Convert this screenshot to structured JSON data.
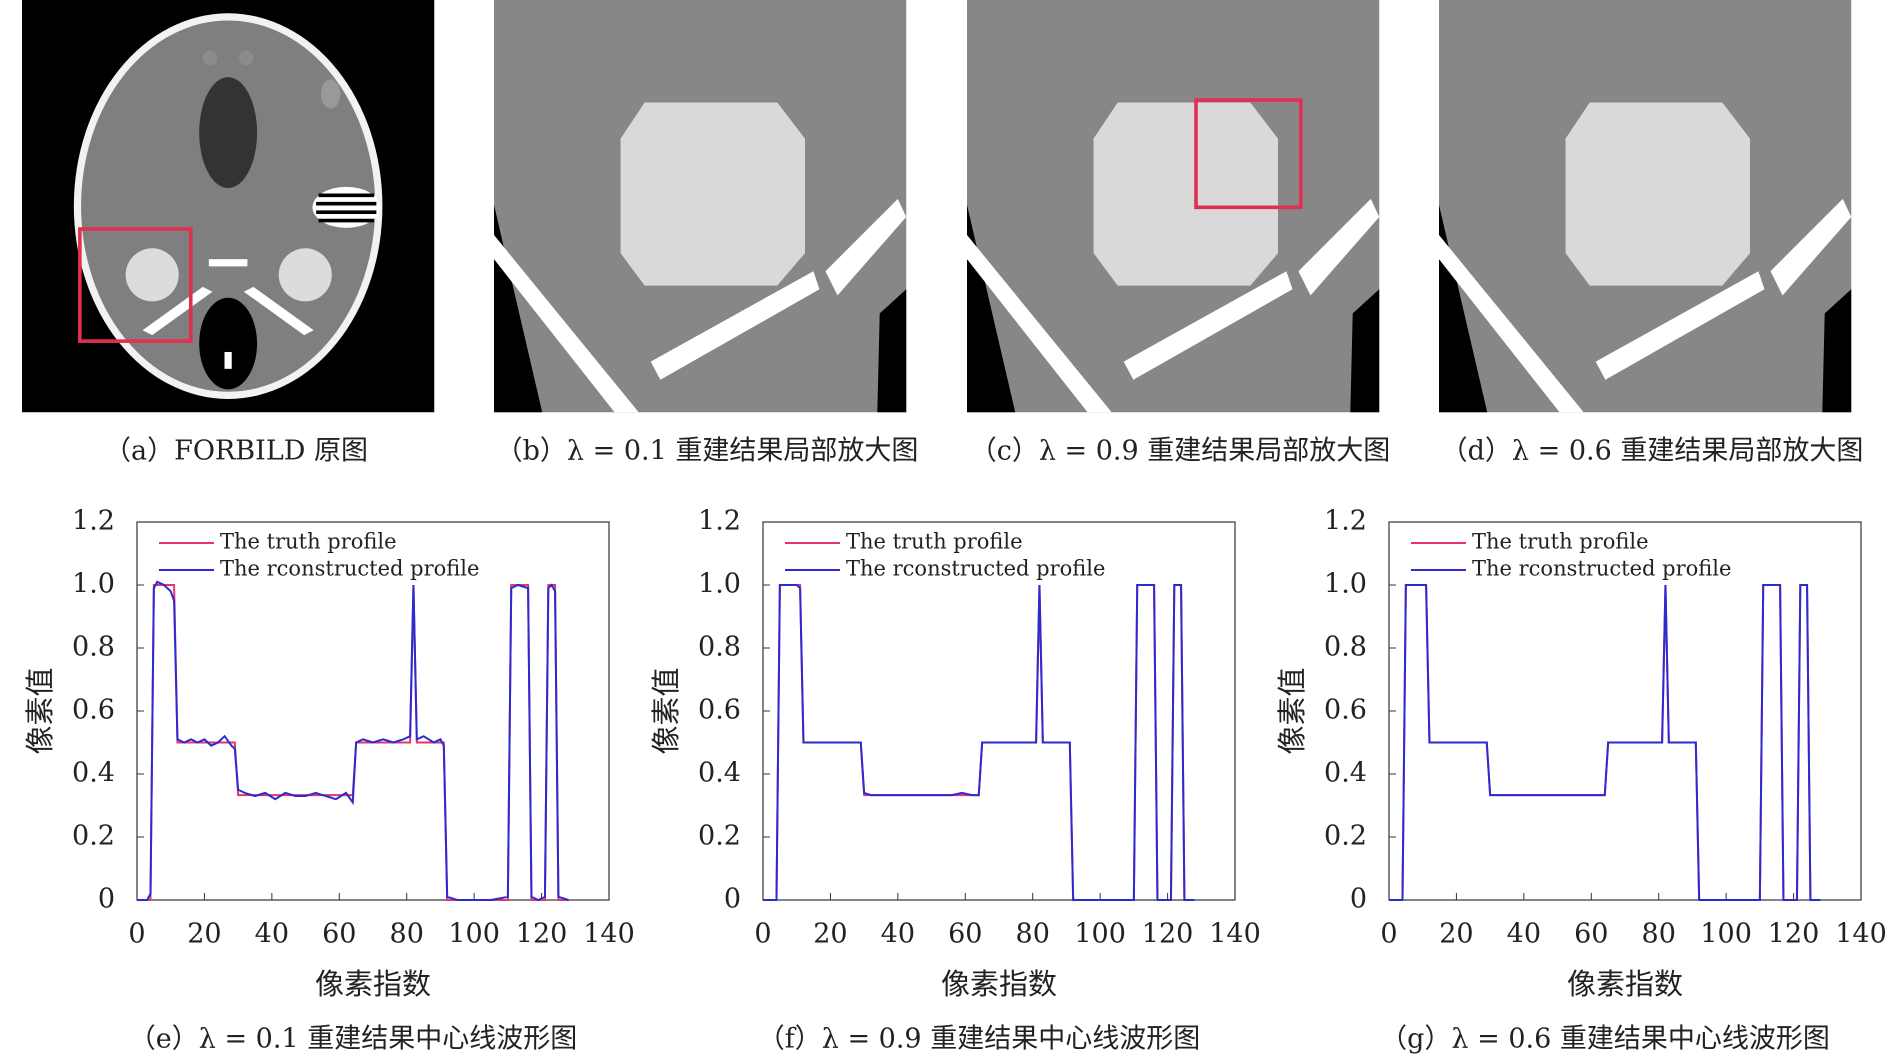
{
  "panels": [
    {
      "caption": "（a）FORBILD 原图"
    },
    {
      "caption": "（b）λ = 0.1 重建结果局部放大图"
    },
    {
      "caption": "（c）λ = 0.9 重建结果局部放大图"
    },
    {
      "caption": "（d）λ = 0.6 重建结果局部放大图"
    }
  ],
  "chart_data": [
    {
      "type": "line",
      "caption": "（e）λ = 0.1 重建结果中心线波形图",
      "xlabel": "像素指数",
      "ylabel": "像素值",
      "legend": "upper left",
      "xlim": [
        0,
        140
      ],
      "ylim": [
        0,
        1.2
      ],
      "xticks": [
        0,
        20,
        40,
        60,
        80,
        100,
        120,
        140
      ],
      "yticks": [
        0,
        0.2,
        0.4,
        0.6,
        0.8,
        {
          "value": 1,
          "label": "1.0"
        },
        1.2
      ],
      "x": [
        0,
        3,
        4,
        5,
        6,
        8,
        10,
        11,
        12,
        14,
        16,
        18,
        20,
        22,
        24,
        26,
        28,
        29,
        30,
        32,
        35,
        38,
        41,
        44,
        47,
        50,
        53,
        56,
        59,
        62,
        64,
        65,
        67,
        70,
        73,
        76,
        79,
        81,
        82,
        83,
        85,
        88,
        90,
        91,
        92,
        95,
        100,
        105,
        110,
        111,
        113,
        116,
        117,
        119,
        121,
        122,
        123,
        124,
        125,
        128
      ],
      "series": [
        {
          "name": "The truth profile",
          "color": "#e8336b",
          "values": [
            0,
            0,
            0,
            1,
            1,
            1,
            1,
            1,
            0.5,
            0.5,
            0.5,
            0.5,
            0.5,
            0.5,
            0.5,
            0.5,
            0.5,
            0.5,
            0.333,
            0.333,
            0.333,
            0.333,
            0.333,
            0.333,
            0.333,
            0.333,
            0.333,
            0.333,
            0.333,
            0.333,
            0.333,
            0.5,
            0.5,
            0.5,
            0.5,
            0.5,
            0.5,
            0.5,
            1,
            0.5,
            0.5,
            0.5,
            0.5,
            0.5,
            0,
            0,
            0,
            0,
            0,
            1,
            1,
            1,
            0,
            0,
            0,
            1,
            1,
            1,
            0,
            0
          ]
        },
        {
          "name": "The rconstructed profile",
          "color": "#2b2bd0",
          "values": [
            0,
            0,
            0.02,
            0.99,
            1.01,
            1,
            0.98,
            0.95,
            0.51,
            0.5,
            0.51,
            0.5,
            0.51,
            0.49,
            0.5,
            0.52,
            0.49,
            0.48,
            0.35,
            0.34,
            0.33,
            0.34,
            0.32,
            0.34,
            0.33,
            0.33,
            0.34,
            0.33,
            0.32,
            0.34,
            0.31,
            0.5,
            0.51,
            0.5,
            0.51,
            0.5,
            0.51,
            0.52,
            1,
            0.51,
            0.52,
            0.5,
            0.51,
            0.49,
            0.01,
            0,
            0,
            0,
            0.01,
            0.99,
            1,
            0.99,
            0.01,
            0,
            0.01,
            0.99,
            1,
            0.98,
            0.01,
            0
          ]
        }
      ]
    },
    {
      "type": "line",
      "caption": "（f）λ = 0.9 重建结果中心线波形图",
      "xlabel": "像素指数",
      "ylabel": "像素值",
      "legend": "upper left",
      "xlim": [
        0,
        140
      ],
      "ylim": [
        0,
        1.2
      ],
      "xticks": [
        0,
        20,
        40,
        60,
        80,
        100,
        120,
        140
      ],
      "yticks": [
        0,
        0.2,
        0.4,
        0.6,
        0.8,
        {
          "value": 1,
          "label": "1.0"
        },
        1.2
      ],
      "x": [
        0,
        3,
        4,
        5,
        6,
        8,
        10,
        11,
        12,
        14,
        16,
        18,
        20,
        22,
        24,
        26,
        28,
        29,
        30,
        32,
        35,
        38,
        41,
        44,
        47,
        50,
        53,
        56,
        59,
        62,
        64,
        65,
        67,
        70,
        73,
        76,
        79,
        81,
        82,
        83,
        85,
        88,
        90,
        91,
        92,
        95,
        100,
        105,
        110,
        111,
        113,
        116,
        117,
        119,
        121,
        122,
        123,
        124,
        125,
        128
      ],
      "series": [
        {
          "name": "The truth profile",
          "color": "#e8336b",
          "values": [
            0,
            0,
            0,
            1,
            1,
            1,
            1,
            1,
            0.5,
            0.5,
            0.5,
            0.5,
            0.5,
            0.5,
            0.5,
            0.5,
            0.5,
            0.5,
            0.333,
            0.333,
            0.333,
            0.333,
            0.333,
            0.333,
            0.333,
            0.333,
            0.333,
            0.333,
            0.333,
            0.333,
            0.333,
            0.5,
            0.5,
            0.5,
            0.5,
            0.5,
            0.5,
            0.5,
            1,
            0.5,
            0.5,
            0.5,
            0.5,
            0.5,
            0,
            0,
            0,
            0,
            0,
            1,
            1,
            1,
            0,
            0,
            0,
            1,
            1,
            1,
            0,
            0
          ]
        },
        {
          "name": "The rconstructed profile",
          "color": "#2b2bd0",
          "values": [
            0,
            0,
            0,
            1,
            1,
            1,
            1,
            0.99,
            0.5,
            0.5,
            0.5,
            0.5,
            0.5,
            0.5,
            0.5,
            0.5,
            0.5,
            0.5,
            0.34,
            0.333,
            0.333,
            0.333,
            0.333,
            0.333,
            0.333,
            0.333,
            0.333,
            0.333,
            0.34,
            0.333,
            0.333,
            0.5,
            0.5,
            0.5,
            0.5,
            0.5,
            0.5,
            0.5,
            1,
            0.5,
            0.5,
            0.5,
            0.5,
            0.5,
            0,
            0,
            0,
            0,
            0,
            1,
            1,
            1,
            0,
            0,
            0,
            1,
            1,
            1,
            0,
            0
          ]
        }
      ]
    },
    {
      "type": "line",
      "caption": "（g）λ = 0.6 重建结果中心线波形图",
      "xlabel": "像素指数",
      "ylabel": "像素值",
      "legend": "upper left",
      "xlim": [
        0,
        140
      ],
      "ylim": [
        0,
        1.2
      ],
      "xticks": [
        0,
        20,
        40,
        60,
        80,
        100,
        120,
        140
      ],
      "yticks": [
        0,
        0.2,
        0.4,
        0.6,
        0.8,
        {
          "value": 1,
          "label": "1.0"
        },
        1.2
      ],
      "x": [
        0,
        3,
        4,
        5,
        6,
        8,
        10,
        11,
        12,
        14,
        16,
        18,
        20,
        22,
        24,
        26,
        28,
        29,
        30,
        32,
        35,
        38,
        41,
        44,
        47,
        50,
        53,
        56,
        59,
        62,
        64,
        65,
        67,
        70,
        73,
        76,
        79,
        81,
        82,
        83,
        85,
        88,
        90,
        91,
        92,
        95,
        100,
        105,
        110,
        111,
        113,
        116,
        117,
        119,
        121,
        122,
        123,
        124,
        125,
        128
      ],
      "series": [
        {
          "name": "The truth profile",
          "color": "#e8336b",
          "values": [
            0,
            0,
            0,
            1,
            1,
            1,
            1,
            1,
            0.5,
            0.5,
            0.5,
            0.5,
            0.5,
            0.5,
            0.5,
            0.5,
            0.5,
            0.5,
            0.333,
            0.333,
            0.333,
            0.333,
            0.333,
            0.333,
            0.333,
            0.333,
            0.333,
            0.333,
            0.333,
            0.333,
            0.333,
            0.5,
            0.5,
            0.5,
            0.5,
            0.5,
            0.5,
            0.5,
            1,
            0.5,
            0.5,
            0.5,
            0.5,
            0.5,
            0,
            0,
            0,
            0,
            0,
            1,
            1,
            1,
            0,
            0,
            0,
            1,
            1,
            1,
            0,
            0
          ]
        },
        {
          "name": "The rconstructed profile",
          "color": "#2b2bd0",
          "values": [
            0,
            0,
            0,
            1,
            1,
            1,
            1,
            1,
            0.5,
            0.5,
            0.5,
            0.5,
            0.5,
            0.5,
            0.5,
            0.5,
            0.5,
            0.5,
            0.333,
            0.333,
            0.333,
            0.333,
            0.333,
            0.333,
            0.333,
            0.333,
            0.333,
            0.333,
            0.333,
            0.333,
            0.333,
            0.5,
            0.5,
            0.5,
            0.5,
            0.5,
            0.5,
            0.5,
            1,
            0.5,
            0.5,
            0.5,
            0.5,
            0.5,
            0,
            0,
            0,
            0,
            0,
            1,
            1,
            1,
            0,
            0,
            0,
            1,
            1,
            1,
            0,
            0
          ]
        }
      ]
    }
  ]
}
